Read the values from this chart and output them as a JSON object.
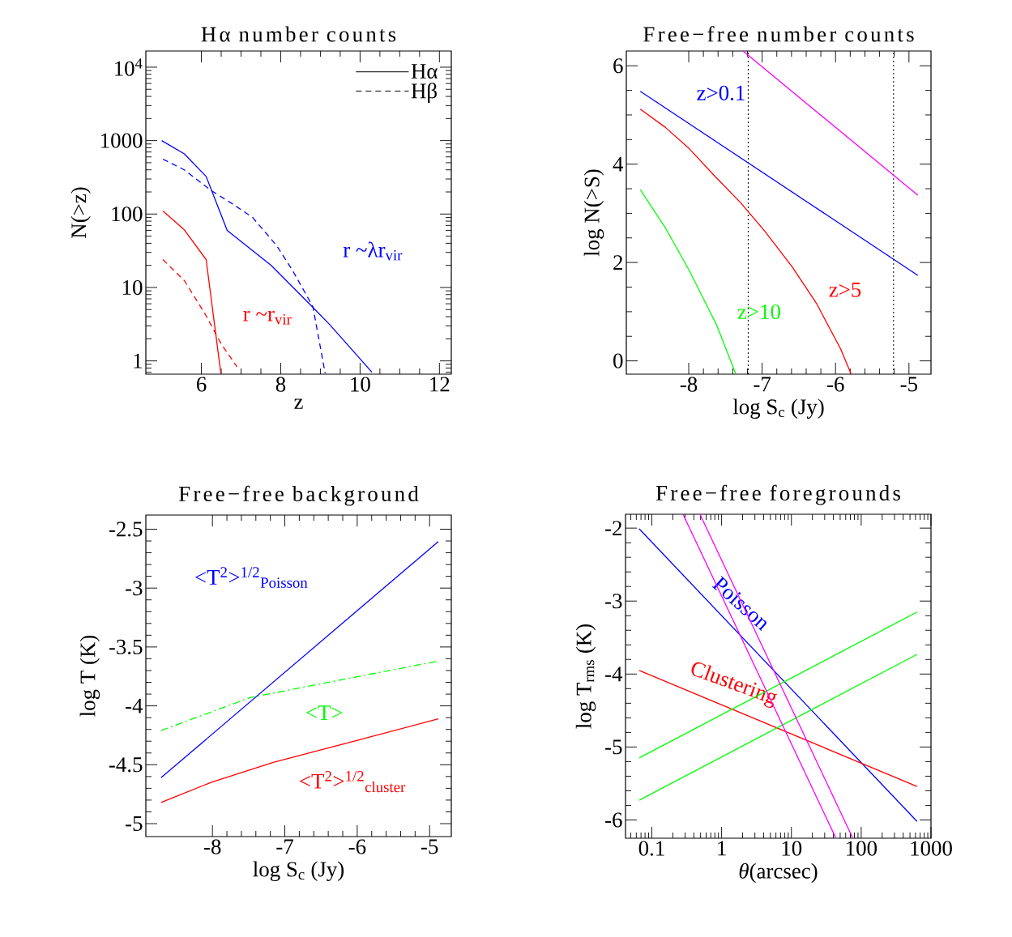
{
  "chart_data": [
    {
      "type": "line",
      "title": "Hα number counts",
      "xlabel": "z",
      "ylabel": "N(>z)",
      "log": "y",
      "legend": "top right",
      "annotations": [
        "r  ~λr$_{vir}$",
        "r  ~r$_{vir}$"
      ],
      "xlim": [
        4.6,
        12.3
      ],
      "xticks": [
        6,
        8,
        10,
        12
      ],
      "ylim": [
        0.66,
        16600
      ],
      "yticks": [
        1,
        10,
        100,
        1000,
        {
          "value": 10000,
          "label": "10$^{4}$"
        }
      ],
      "series": [
        {
          "name": "Hα",
          "color": "#0000ff",
          "line_style": "solid",
          "x": [
            5,
            5.57,
            6.12,
            6.65,
            7.76,
            8.75,
            9.24,
            10.3
          ],
          "values": [
            1000,
            660,
            325,
            60,
            20,
            5.8,
            3.1,
            0.7
          ]
        },
        {
          "name": "Hβ",
          "color": "#0000ff",
          "line_style": "dashed",
          "x": [
            5.03,
            5.57,
            6.24,
            6.78,
            7.29,
            7.9,
            8.3,
            8.81,
            9.12
          ],
          "values": [
            560,
            400,
            210,
            138,
            90,
            37,
            17,
            5.5,
            0.68
          ]
        },
        {
          "color": "#ff0000",
          "line_style": "solid",
          "x": [
            5.03,
            5.57,
            6.12,
            6.49
          ],
          "values": [
            110,
            61,
            24,
            0.68
          ]
        },
        {
          "color": "#ff0000",
          "line_style": "dashed",
          "x": [
            5.03,
            5.57,
            6.1,
            6.5,
            6.9
          ],
          "values": [
            24,
            12.4,
            4.3,
            1.7,
            0.83
          ]
        }
      ]
    },
    {
      "type": "line",
      "title": "Free−free number counts",
      "xlabel": "log S$_{c}$ (Jy)",
      "ylabel": "log N(>S)",
      "xlim": [
        -8.85,
        -4.7
      ],
      "xticks": [
        -8,
        -7,
        -6,
        -5
      ],
      "ylim": [
        -0.27,
        6.3
      ],
      "yticks": [
        0,
        2,
        4,
        6
      ],
      "ref_lines": [
        {
          "axis": "x",
          "value": -7.19,
          "color": "#000000",
          "line_style": "dotted"
        },
        {
          "axis": "x",
          "value": -5.21,
          "color": "#000000",
          "line_style": "dotted"
        }
      ],
      "series": [
        {
          "color": "#ff00ff",
          "x": [
            -7.26,
            -4.88
          ],
          "values": [
            6.3,
            3.37
          ]
        },
        {
          "name": "z>0.1",
          "color": "#0000ff",
          "x": [
            -8.66,
            -4.88
          ],
          "values": [
            5.48,
            1.74
          ]
        },
        {
          "name": "z>5",
          "color": "#ff0000",
          "x": [
            -8.66,
            -8.32,
            -7.99,
            -7.66,
            -7.29,
            -6.96,
            -6.59,
            -6.26,
            -5.93,
            -5.79
          ],
          "values": [
            5.12,
            4.75,
            4.31,
            3.78,
            3.21,
            2.63,
            1.91,
            1.17,
            0.24,
            -0.26
          ]
        },
        {
          "name": "z>10",
          "color": "#00ff00",
          "x": [
            -8.66,
            -8.32,
            -7.99,
            -7.62,
            -7.36
          ],
          "values": [
            3.48,
            2.71,
            1.83,
            0.73,
            -0.26
          ]
        }
      ]
    },
    {
      "type": "line",
      "title": "Free−free background",
      "xlabel": "log S$_{c}$ (Jy)",
      "ylabel": "log T (K)",
      "xlim": [
        -8.92,
        -4.7
      ],
      "xticks": [
        -8,
        -7,
        -6,
        -5
      ],
      "ylim": [
        -5.11,
        -2.38
      ],
      "yticks": [
        -5,
        -4.5,
        -4,
        -3.5,
        -3,
        -2.5
      ],
      "series": [
        {
          "name": "<T$^{2}$>$^{1/2}$$_{Poisson}$",
          "color": "#0000ff",
          "line_style": "solid",
          "x": [
            -8.71,
            -4.88
          ],
          "values": [
            -4.61,
            -2.605
          ]
        },
        {
          "name": "<T>",
          "color": "#00ff00",
          "line_style": "dashdot",
          "x": [
            -8.71,
            -7.48,
            -6.23,
            -4.88
          ],
          "values": [
            -4.21,
            -3.93,
            -3.78,
            -3.62
          ]
        },
        {
          "name": "<T$^{2}$>$^{1/2}$$_{cluster}$",
          "color": "#ff0000",
          "line_style": "solid",
          "x": [
            -8.71,
            -8.02,
            -7.16,
            -6.04,
            -4.88
          ],
          "values": [
            -4.82,
            -4.65,
            -4.48,
            -4.3,
            -4.11
          ]
        }
      ]
    },
    {
      "type": "line",
      "title": "Free−free foregrounds",
      "xlabel": "*θ*(arcsec)",
      "ylabel": "log T$_{rms}$ (K)",
      "log": "x",
      "xlim": [
        0.042,
        1000
      ],
      "xticks": [
        0.1,
        1,
        10,
        100,
        1000
      ],
      "ylim": [
        -6.25,
        -1.81
      ],
      "yticks": [
        -6,
        -5,
        -4,
        -3,
        -2
      ],
      "series": [
        {
          "name": "Poisson",
          "color": "#0000ff",
          "x": [
            0.066,
            631
          ],
          "values": [
            -2.01,
            -6.02
          ]
        },
        {
          "name": "Clustering",
          "color": "#ff0000",
          "x": [
            0.066,
            631
          ],
          "values": [
            -3.95,
            -5.54
          ]
        },
        {
          "color": "#00ff00",
          "x": [
            0.066,
            631
          ],
          "values": [
            -5.15,
            -3.15
          ]
        },
        {
          "color": "#00ff00",
          "x": [
            0.066,
            631
          ],
          "values": [
            -5.73,
            -3.73
          ]
        },
        {
          "color": "#ff00ff",
          "x": [
            0.28,
            43
          ],
          "values": [
            -1.81,
            -6.24
          ]
        },
        {
          "color": "#ff00ff",
          "x": [
            0.49,
            75
          ],
          "values": [
            -1.81,
            -6.24
          ]
        }
      ]
    }
  ]
}
